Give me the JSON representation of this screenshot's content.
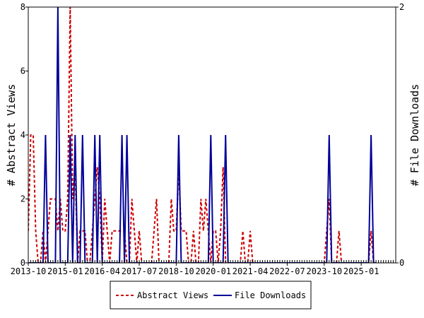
{
  "chart_data": {
    "type": "line",
    "ylabel_left": "# Abstract Views",
    "ylabel_right": "# File Downloads",
    "ylim_left": [
      0,
      8
    ],
    "ylim_right": [
      0,
      2
    ],
    "yticks_left": [
      "0",
      "2",
      "4",
      "6",
      "8"
    ],
    "yticks_right": [
      "0",
      "2"
    ],
    "xlim": [
      "2013-10",
      "2026-03"
    ],
    "xticks": [
      "2013-10",
      "2015-01",
      "2016-04",
      "2017-07",
      "2018-10",
      "2020-01",
      "2021-04",
      "2022-07",
      "2023-10",
      "2025-01"
    ],
    "grid": false,
    "legend_position": "bottom",
    "series": [
      {
        "name": "Abstract Views",
        "axis": "left",
        "color": "#cc0000",
        "style": "dashed",
        "points": [
          [
            "2013-10",
            1
          ],
          [
            "2013-11",
            4
          ],
          [
            "2013-12",
            4
          ],
          [
            "2014-01",
            1
          ],
          [
            "2014-02",
            0
          ],
          [
            "2014-03",
            0
          ],
          [
            "2014-04",
            1
          ],
          [
            "2014-05",
            0
          ],
          [
            "2014-06",
            1
          ],
          [
            "2014-07",
            2
          ],
          [
            "2014-08",
            2
          ],
          [
            "2014-09",
            2
          ],
          [
            "2014-10",
            1
          ],
          [
            "2014-11",
            2
          ],
          [
            "2014-12",
            1
          ],
          [
            "2015-01",
            1
          ],
          [
            "2015-02",
            2
          ],
          [
            "2015-03",
            8
          ],
          [
            "2015-04",
            2
          ],
          [
            "2015-05",
            3
          ],
          [
            "2015-06",
            0
          ],
          [
            "2015-07",
            1
          ],
          [
            "2015-08",
            1
          ],
          [
            "2015-09",
            1
          ],
          [
            "2015-10",
            0
          ],
          [
            "2015-11",
            0
          ],
          [
            "2015-12",
            1
          ],
          [
            "2016-01",
            2
          ],
          [
            "2016-02",
            3
          ],
          [
            "2016-03",
            2
          ],
          [
            "2016-04",
            0
          ],
          [
            "2016-05",
            2
          ],
          [
            "2016-06",
            1
          ],
          [
            "2016-07",
            0
          ],
          [
            "2016-08",
            1
          ],
          [
            "2016-09",
            1
          ],
          [
            "2016-10",
            1
          ],
          [
            "2016-11",
            1
          ],
          [
            "2016-12",
            1
          ],
          [
            "2017-01",
            1
          ],
          [
            "2017-02",
            0
          ],
          [
            "2017-03",
            0
          ],
          [
            "2017-04",
            2
          ],
          [
            "2017-05",
            1
          ],
          [
            "2017-06",
            0
          ],
          [
            "2017-07",
            1
          ],
          [
            "2017-08",
            0
          ],
          [
            "2017-09",
            0
          ],
          [
            "2017-10",
            0
          ],
          [
            "2017-11",
            0
          ],
          [
            "2017-12",
            0
          ],
          [
            "2018-01",
            1
          ],
          [
            "2018-02",
            2
          ],
          [
            "2018-03",
            0
          ],
          [
            "2018-04",
            0
          ],
          [
            "2018-05",
            0
          ],
          [
            "2018-06",
            0
          ],
          [
            "2018-07",
            0
          ],
          [
            "2018-08",
            2
          ],
          [
            "2018-09",
            1
          ],
          [
            "2018-10",
            1
          ],
          [
            "2018-11",
            3
          ],
          [
            "2018-12",
            1
          ],
          [
            "2019-01",
            1
          ],
          [
            "2019-02",
            1
          ],
          [
            "2019-03",
            0
          ],
          [
            "2019-04",
            0
          ],
          [
            "2019-05",
            1
          ],
          [
            "2019-06",
            0
          ],
          [
            "2019-07",
            0
          ],
          [
            "2019-08",
            2
          ],
          [
            "2019-09",
            1
          ],
          [
            "2019-10",
            2
          ],
          [
            "2019-11",
            1
          ],
          [
            "2019-12",
            0
          ],
          [
            "2020-01",
            1
          ],
          [
            "2020-02",
            1
          ],
          [
            "2020-03",
            0
          ],
          [
            "2020-04",
            1
          ],
          [
            "2020-05",
            3
          ],
          [
            "2020-06",
            0
          ],
          [
            "2020-07",
            0
          ],
          [
            "2020-08",
            0
          ],
          [
            "2020-09",
            0
          ],
          [
            "2020-10",
            0
          ],
          [
            "2020-11",
            0
          ],
          [
            "2020-12",
            0
          ],
          [
            "2021-01",
            1
          ],
          [
            "2021-02",
            0
          ],
          [
            "2021-03",
            0
          ],
          [
            "2021-04",
            1
          ],
          [
            "2021-05",
            0
          ],
          [
            "2021-06",
            0
          ],
          [
            "2021-07",
            0
          ],
          [
            "2021-08",
            0
          ],
          [
            "2021-09",
            0
          ],
          [
            "2021-10",
            0
          ],
          [
            "2021-11",
            0
          ],
          [
            "2021-12",
            0
          ],
          [
            "2022-01",
            0
          ],
          [
            "2022-02",
            0
          ],
          [
            "2022-03",
            0
          ],
          [
            "2022-04",
            0
          ],
          [
            "2022-05",
            0
          ],
          [
            "2022-06",
            0
          ],
          [
            "2022-07",
            0
          ],
          [
            "2022-08",
            0
          ],
          [
            "2022-09",
            0
          ],
          [
            "2022-10",
            0
          ],
          [
            "2022-11",
            0
          ],
          [
            "2022-12",
            0
          ],
          [
            "2023-01",
            0
          ],
          [
            "2023-02",
            0
          ],
          [
            "2023-03",
            0
          ],
          [
            "2023-04",
            0
          ],
          [
            "2023-05",
            0
          ],
          [
            "2023-06",
            0
          ],
          [
            "2023-07",
            0
          ],
          [
            "2023-08",
            0
          ],
          [
            "2023-09",
            0
          ],
          [
            "2023-10",
            0
          ],
          [
            "2023-11",
            1
          ],
          [
            "2023-12",
            2
          ],
          [
            "2024-01",
            0
          ],
          [
            "2024-02",
            0
          ],
          [
            "2024-03",
            0
          ],
          [
            "2024-04",
            1
          ],
          [
            "2024-05",
            0
          ],
          [
            "2024-06",
            0
          ],
          [
            "2024-07",
            0
          ],
          [
            "2024-08",
            0
          ],
          [
            "2024-09",
            0
          ],
          [
            "2024-10",
            0
          ],
          [
            "2024-11",
            0
          ],
          [
            "2024-12",
            0
          ],
          [
            "2025-01",
            0
          ],
          [
            "2025-02",
            0
          ],
          [
            "2025-03",
            0
          ],
          [
            "2025-04",
            0
          ],
          [
            "2025-05",
            1
          ],
          [
            "2025-06",
            0
          ],
          [
            "2025-07",
            0
          ]
        ]
      },
      {
        "name": "File Downloads",
        "axis": "right",
        "color": "#000099",
        "style": "solid",
        "points": [
          [
            "2013-10",
            0
          ],
          [
            "2013-11",
            0
          ],
          [
            "2013-12",
            0
          ],
          [
            "2014-01",
            0
          ],
          [
            "2014-02",
            0
          ],
          [
            "2014-03",
            0
          ],
          [
            "2014-04",
            0
          ],
          [
            "2014-05",
            1
          ],
          [
            "2014-06",
            0
          ],
          [
            "2014-07",
            0
          ],
          [
            "2014-08",
            0
          ],
          [
            "2014-09",
            0
          ],
          [
            "2014-10",
            2
          ],
          [
            "2014-11",
            0
          ],
          [
            "2014-12",
            0
          ],
          [
            "2015-01",
            0
          ],
          [
            "2015-02",
            0
          ],
          [
            "2015-03",
            1
          ],
          [
            "2015-04",
            0
          ],
          [
            "2015-05",
            1
          ],
          [
            "2015-06",
            0
          ],
          [
            "2015-07",
            0
          ],
          [
            "2015-08",
            1
          ],
          [
            "2015-09",
            0
          ],
          [
            "2015-10",
            0
          ],
          [
            "2015-11",
            0
          ],
          [
            "2015-12",
            0
          ],
          [
            "2016-01",
            1
          ],
          [
            "2016-02",
            0
          ],
          [
            "2016-03",
            1
          ],
          [
            "2016-04",
            0
          ],
          [
            "2016-05",
            0
          ],
          [
            "2016-06",
            0
          ],
          [
            "2016-07",
            0
          ],
          [
            "2016-08",
            0
          ],
          [
            "2016-09",
            0
          ],
          [
            "2016-10",
            0
          ],
          [
            "2016-11",
            0
          ],
          [
            "2016-12",
            1
          ],
          [
            "2017-01",
            0
          ],
          [
            "2017-02",
            1
          ],
          [
            "2017-03",
            0
          ],
          [
            "2017-04",
            0
          ],
          [
            "2017-05",
            0
          ],
          [
            "2017-06",
            0
          ],
          [
            "2017-07",
            0
          ],
          [
            "2017-08",
            0
          ],
          [
            "2017-09",
            0
          ],
          [
            "2017-10",
            0
          ],
          [
            "2017-11",
            0
          ],
          [
            "2017-12",
            0
          ],
          [
            "2018-01",
            0
          ],
          [
            "2018-02",
            0
          ],
          [
            "2018-03",
            0
          ],
          [
            "2018-04",
            0
          ],
          [
            "2018-05",
            0
          ],
          [
            "2018-06",
            0
          ],
          [
            "2018-07",
            0
          ],
          [
            "2018-08",
            0
          ],
          [
            "2018-09",
            0
          ],
          [
            "2018-10",
            0
          ],
          [
            "2018-11",
            1
          ],
          [
            "2018-12",
            0
          ],
          [
            "2019-01",
            0
          ],
          [
            "2019-02",
            0
          ],
          [
            "2019-03",
            0
          ],
          [
            "2019-04",
            0
          ],
          [
            "2019-05",
            0
          ],
          [
            "2019-06",
            0
          ],
          [
            "2019-07",
            0
          ],
          [
            "2019-08",
            0
          ],
          [
            "2019-09",
            0
          ],
          [
            "2019-10",
            0
          ],
          [
            "2019-11",
            0
          ],
          [
            "2019-12",
            1
          ],
          [
            "2020-01",
            0
          ],
          [
            "2020-02",
            0
          ],
          [
            "2020-03",
            0
          ],
          [
            "2020-04",
            0
          ],
          [
            "2020-05",
            0
          ],
          [
            "2020-06",
            1
          ],
          [
            "2020-07",
            0
          ],
          [
            "2020-08",
            0
          ],
          [
            "2020-09",
            0
          ],
          [
            "2020-10",
            0
          ],
          [
            "2020-11",
            0
          ],
          [
            "2020-12",
            0
          ],
          [
            "2021-01",
            0
          ],
          [
            "2021-02",
            0
          ],
          [
            "2021-03",
            0
          ],
          [
            "2021-04",
            0
          ],
          [
            "2021-05",
            0
          ],
          [
            "2021-06",
            0
          ],
          [
            "2021-07",
            0
          ],
          [
            "2021-08",
            0
          ],
          [
            "2021-09",
            0
          ],
          [
            "2021-10",
            0
          ],
          [
            "2021-11",
            0
          ],
          [
            "2021-12",
            0
          ],
          [
            "2022-01",
            0
          ],
          [
            "2022-02",
            0
          ],
          [
            "2022-03",
            0
          ],
          [
            "2022-04",
            0
          ],
          [
            "2022-05",
            0
          ],
          [
            "2022-06",
            0
          ],
          [
            "2022-07",
            0
          ],
          [
            "2022-08",
            0
          ],
          [
            "2022-09",
            0
          ],
          [
            "2022-10",
            0
          ],
          [
            "2022-11",
            0
          ],
          [
            "2022-12",
            0
          ],
          [
            "2023-01",
            0
          ],
          [
            "2023-02",
            0
          ],
          [
            "2023-03",
            0
          ],
          [
            "2023-04",
            0
          ],
          [
            "2023-05",
            0
          ],
          [
            "2023-06",
            0
          ],
          [
            "2023-07",
            0
          ],
          [
            "2023-08",
            0
          ],
          [
            "2023-09",
            0
          ],
          [
            "2023-10",
            0
          ],
          [
            "2023-11",
            0
          ],
          [
            "2023-12",
            1
          ],
          [
            "2024-01",
            0
          ],
          [
            "2024-02",
            0
          ],
          [
            "2024-03",
            0
          ],
          [
            "2024-04",
            0
          ],
          [
            "2024-05",
            0
          ],
          [
            "2024-06",
            0
          ],
          [
            "2024-07",
            0
          ],
          [
            "2024-08",
            0
          ],
          [
            "2024-09",
            0
          ],
          [
            "2024-10",
            0
          ],
          [
            "2024-11",
            0
          ],
          [
            "2024-12",
            0
          ],
          [
            "2025-01",
            0
          ],
          [
            "2025-02",
            0
          ],
          [
            "2025-03",
            0
          ],
          [
            "2025-04",
            0
          ],
          [
            "2025-05",
            1
          ],
          [
            "2025-06",
            0
          ],
          [
            "2025-07",
            0
          ]
        ]
      }
    ]
  }
}
